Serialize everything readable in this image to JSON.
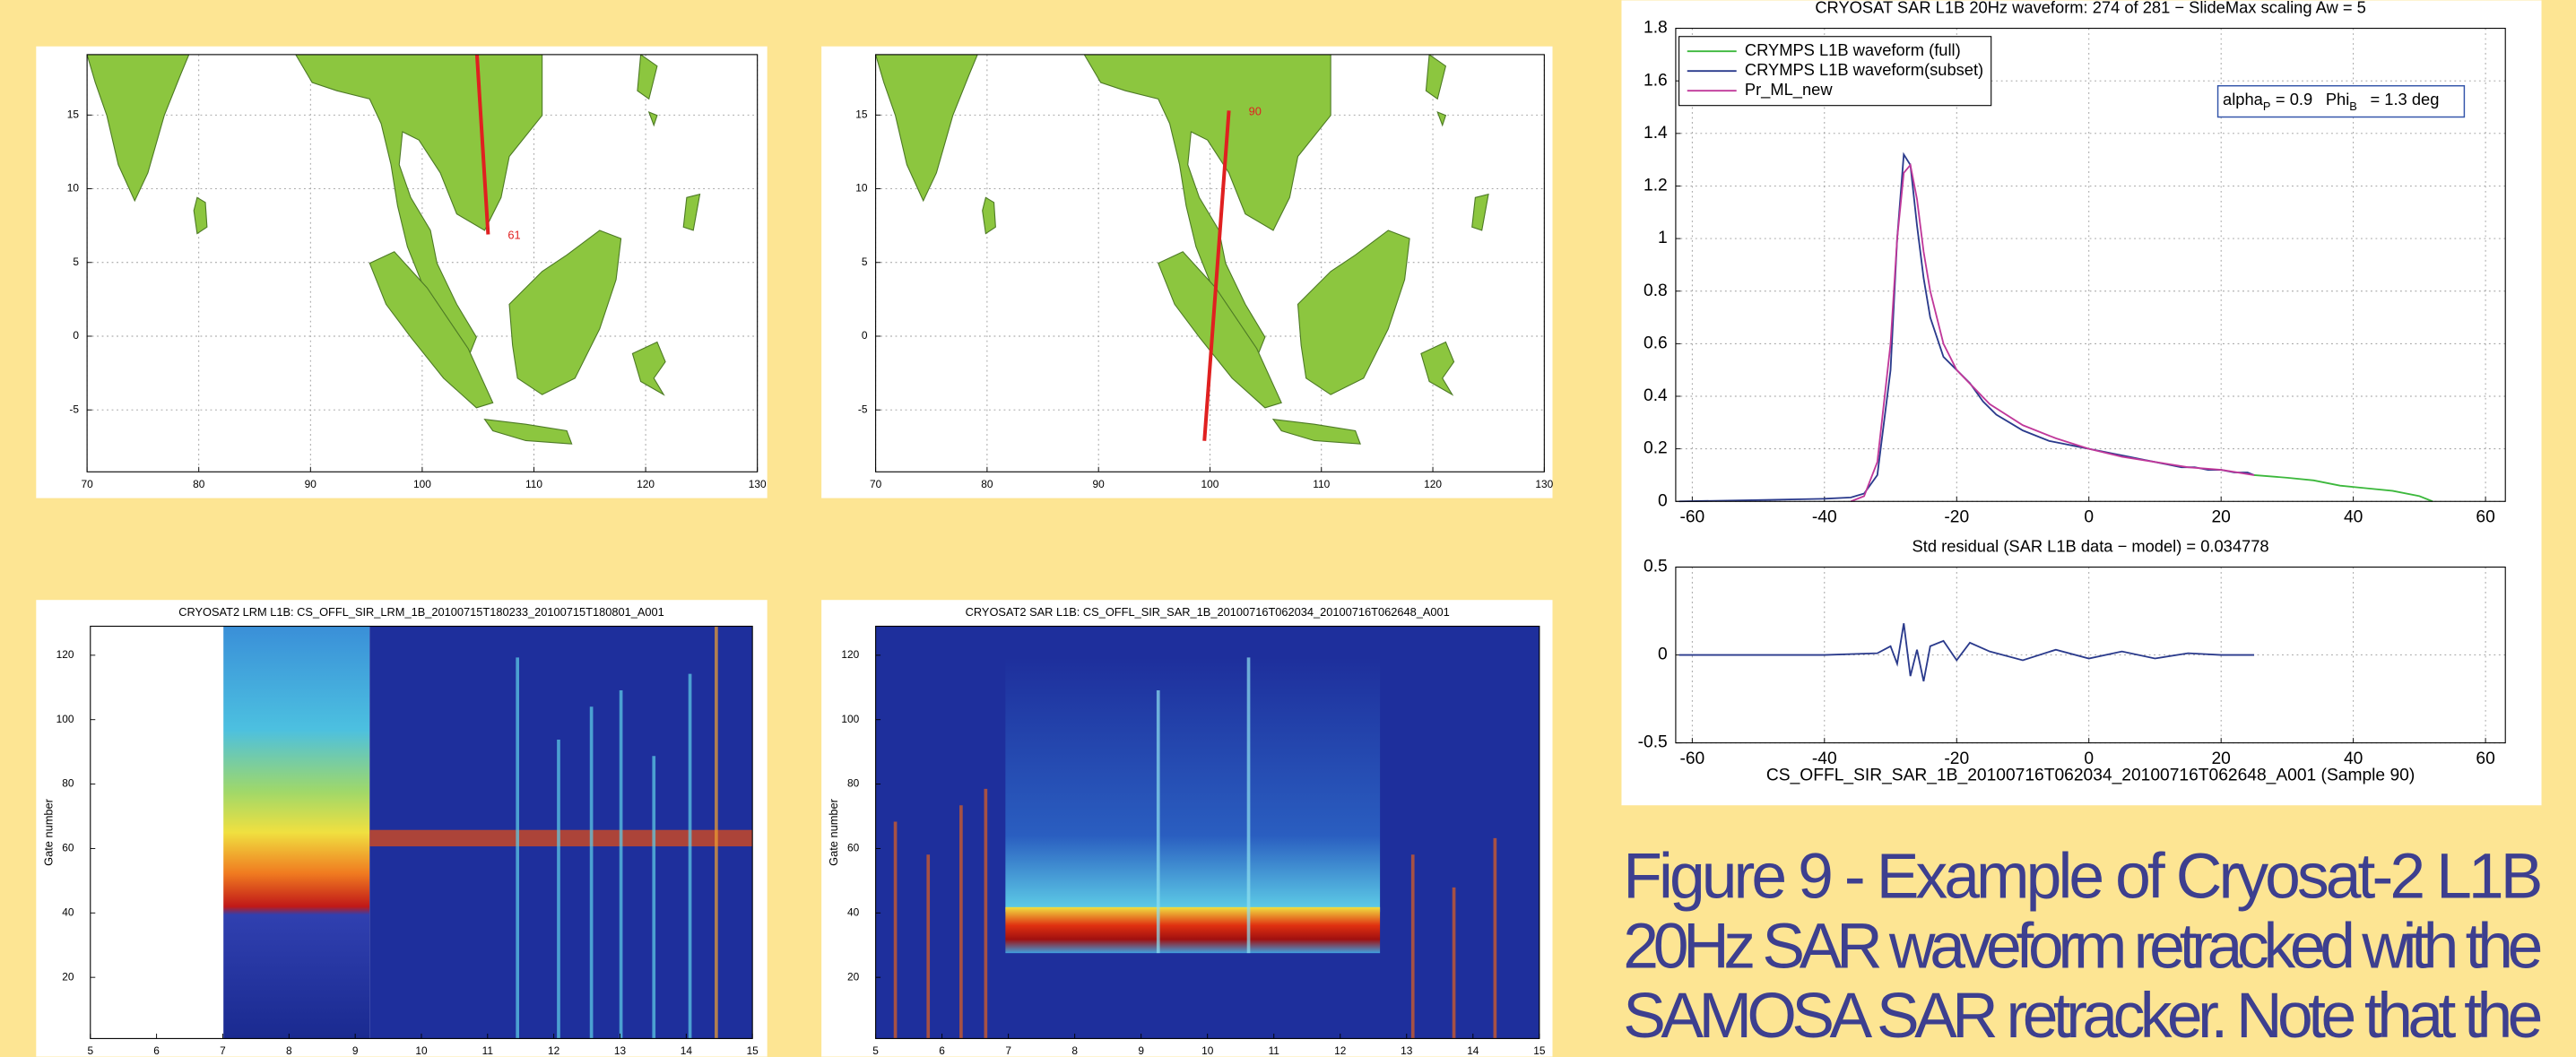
{
  "chart_data": [
    {
      "type": "map",
      "xlim": [
        70,
        130
      ],
      "ylim": [
        -9.2,
        19.1
      ],
      "xticks": [
        70,
        80,
        90,
        100,
        110,
        120,
        130
      ],
      "yticks": [
        -5,
        0,
        5,
        10,
        15
      ],
      "grid": true,
      "track": {
        "x": [
          104.9,
          105.9
        ],
        "y": [
          19.1,
          6.9
        ],
        "label": "61",
        "color": "#e02020"
      }
    },
    {
      "type": "map",
      "xlim": [
        70,
        130
      ],
      "ylim": [
        -9.2,
        19.1
      ],
      "xticks": [
        70,
        80,
        90,
        100,
        110,
        120,
        130
      ],
      "yticks": [
        -5,
        0,
        5,
        10,
        15
      ],
      "grid": true,
      "track": {
        "x": [
          101.7,
          99.5
        ],
        "y": [
          15.3,
          -7.1
        ],
        "label": "90",
        "color": "#e02020"
      }
    },
    {
      "type": "heatmap",
      "title": "CRYOSAT2 LRM L1B: CS_OFFL_SIR_LRM_1B_20100715T180233_20100715T180801_A001",
      "ylabel": "Gate number",
      "xlim": [
        5,
        15
      ],
      "ylim": [
        1,
        129
      ],
      "xticks": [
        5,
        6,
        7,
        8,
        9,
        10,
        11,
        12,
        13,
        14,
        15
      ],
      "yticks": [
        20,
        40,
        60,
        80,
        100,
        120
      ]
    },
    {
      "type": "heatmap",
      "title": "CRYOSAT2 SAR L1B: CS_OFFL_SIR_SAR_1B_20100716T062034_20100716T062648_A001",
      "ylabel": "Gate number",
      "xlim": [
        5,
        15
      ],
      "ylim": [
        1,
        129
      ],
      "xticks": [
        5,
        6,
        7,
        8,
        9,
        10,
        11,
        12,
        13,
        14,
        15
      ],
      "yticks": [
        20,
        40,
        60,
        80,
        100,
        120
      ]
    },
    {
      "type": "line",
      "title": "CRYOSAT SAR L1B 20Hz waveform: 274 of 281 − SlideMax scaling Aw = 5",
      "xlim": [
        -62.5,
        63
      ],
      "ylim": [
        0,
        1.8
      ],
      "xticks": [
        -60,
        -40,
        -20,
        0,
        20,
        40,
        60
      ],
      "yticks": [
        0,
        0.2,
        0.4,
        0.6,
        0.8,
        1,
        1.2,
        1.4,
        1.6,
        1.8
      ],
      "grid": true,
      "legend": "upper left",
      "annotation": [
        "alpha",
        "P",
        "= 0.9",
        "Phi",
        "B",
        "= 1.3 deg"
      ],
      "series": [
        {
          "name": "CRYMPS L1B waveform (full)",
          "color": "#3cb83c",
          "x": [
            25,
            30,
            34,
            38,
            42,
            46,
            50,
            52
          ],
          "values": [
            0.1,
            0.09,
            0.08,
            0.06,
            0.05,
            0.04,
            0.02,
            0
          ]
        },
        {
          "name": "CRYMPS L1B waveform(subset)",
          "color": "#2a3a8c",
          "x": [
            -62,
            -50,
            -40,
            -36,
            -34,
            -32,
            -30,
            -29,
            -28,
            -27,
            -26,
            -25,
            -24,
            -22,
            -20,
            -18,
            -16,
            -14,
            -12,
            -10,
            -8,
            -6,
            -4,
            -2,
            0,
            2,
            4,
            6,
            8,
            10,
            12,
            14,
            16,
            18,
            20,
            22,
            24,
            25
          ],
          "values": [
            0,
            0.005,
            0.01,
            0.015,
            0.03,
            0.1,
            0.5,
            1.0,
            1.32,
            1.28,
            1.05,
            0.85,
            0.7,
            0.55,
            0.5,
            0.45,
            0.38,
            0.33,
            0.3,
            0.27,
            0.25,
            0.23,
            0.22,
            0.21,
            0.2,
            0.19,
            0.18,
            0.17,
            0.16,
            0.15,
            0.14,
            0.13,
            0.13,
            0.12,
            0.12,
            0.11,
            0.11,
            0.1
          ]
        },
        {
          "name": "Pr_ML_new",
          "color": "#c0389a",
          "x": [
            -36,
            -34,
            -32,
            -30,
            -29,
            -28,
            -27,
            -26,
            -25,
            -24,
            -22,
            -20,
            -15,
            -10,
            -5,
            0,
            5,
            10,
            15,
            20,
            25
          ],
          "values": [
            0,
            0.02,
            0.15,
            0.6,
            1.0,
            1.25,
            1.28,
            1.15,
            0.95,
            0.8,
            0.6,
            0.5,
            0.37,
            0.29,
            0.24,
            0.2,
            0.17,
            0.15,
            0.13,
            0.12,
            0.1
          ]
        }
      ]
    },
    {
      "type": "line",
      "title": "Std residual (SAR L1B data − model) = 0.034778",
      "xlabel": "CS_OFFL_SIR_SAR_1B_20100716T062034_20100716T062648_A001 (Sample 90)",
      "xlim": [
        -62.5,
        63
      ],
      "ylim": [
        -0.5,
        0.5
      ],
      "xticks": [
        -60,
        -40,
        -20,
        0,
        20,
        40,
        60
      ],
      "yticks": [
        -0.5,
        0,
        0.5
      ],
      "grid": true,
      "series": [
        {
          "color": "#2a3a8c",
          "x": [
            -62,
            -40,
            -32,
            -30,
            -29,
            -28,
            -27,
            -26,
            -25,
            -24,
            -22,
            -20,
            -18,
            -15,
            -10,
            -5,
            0,
            5,
            10,
            15,
            20,
            25
          ],
          "values": [
            0,
            0,
            0.01,
            0.05,
            -0.05,
            0.18,
            -0.12,
            0.03,
            -0.15,
            0.05,
            0.08,
            -0.03,
            0.07,
            0.02,
            -0.03,
            0.03,
            -0.02,
            0.02,
            -0.02,
            0.01,
            0,
            0
          ]
        }
      ]
    }
  ],
  "caption": {
    "lines": [
      "Figure 9 - Example of Cryosat-2 L1B",
      "20Hz SAR waveform retracked with the",
      "SAMOSA SAR retracker.  Note that the"
    ]
  }
}
